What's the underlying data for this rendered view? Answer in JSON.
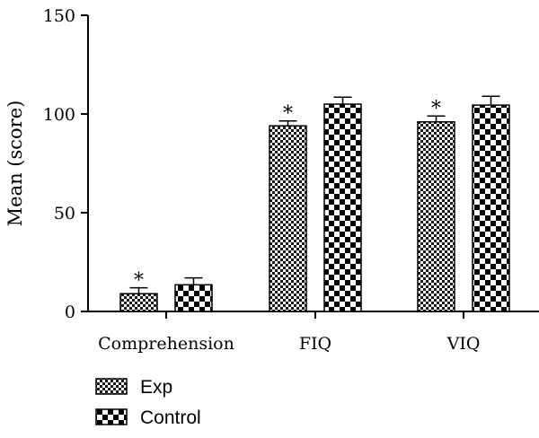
{
  "chart_data": {
    "type": "bar",
    "categories": [
      "Comprehension",
      "FIQ",
      "VIQ"
    ],
    "series": [
      {
        "name": "Exp",
        "values": [
          9,
          94,
          96
        ],
        "errors": [
          3,
          2.5,
          3
        ],
        "significant": [
          true,
          true,
          true
        ],
        "pattern": "fine-checker"
      },
      {
        "name": "Control",
        "values": [
          13.5,
          105,
          104.5
        ],
        "errors": [
          3.5,
          3.5,
          4.5
        ],
        "significant": [
          false,
          false,
          false
        ],
        "pattern": "coarse-checker"
      }
    ],
    "significance_marker": "*",
    "ylabel": "Mean (score)",
    "xlabel": "",
    "ylim": [
      0,
      150
    ],
    "yticks": [
      0,
      50,
      100,
      150
    ],
    "grid": false,
    "legend_position": "bottom-left"
  }
}
